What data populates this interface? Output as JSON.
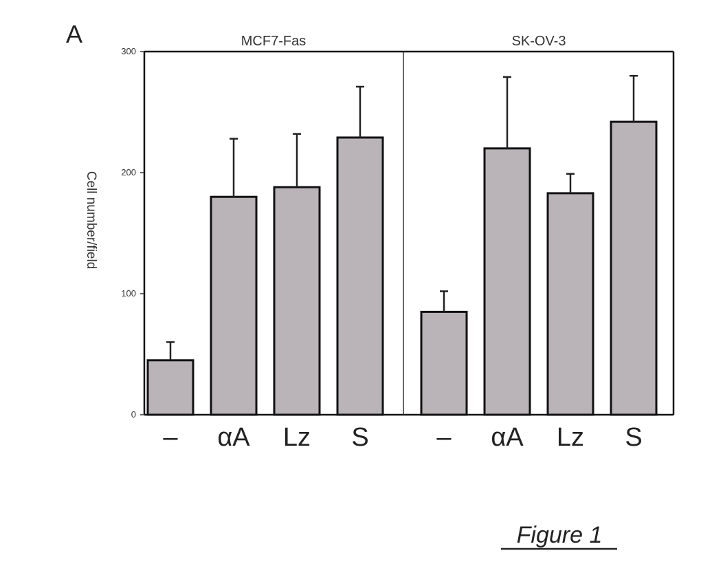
{
  "figure": {
    "panel_letter": "A",
    "caption": "Figure 1"
  },
  "chart_data": {
    "type": "bar",
    "title": "",
    "ylabel": "Cell number/field",
    "xlabel": "",
    "ylim": [
      0,
      300
    ],
    "yticks": [
      0,
      100,
      200,
      300
    ],
    "groups": [
      {
        "name": "MCF7-Fas",
        "categories": [
          "–",
          "αA",
          "Lz",
          "S"
        ],
        "values": [
          45,
          180,
          188,
          229
        ],
        "errors": [
          15,
          48,
          44,
          42
        ]
      },
      {
        "name": "SK-OV-3",
        "categories": [
          "–",
          "αA",
          "Lz",
          "S"
        ],
        "values": [
          85,
          220,
          183,
          242
        ],
        "errors": [
          17,
          59,
          16,
          38
        ]
      }
    ],
    "grid": false,
    "legend": "none",
    "colors": {
      "bar_fill": "#bab4b8",
      "bar_stroke": "#111111"
    }
  }
}
